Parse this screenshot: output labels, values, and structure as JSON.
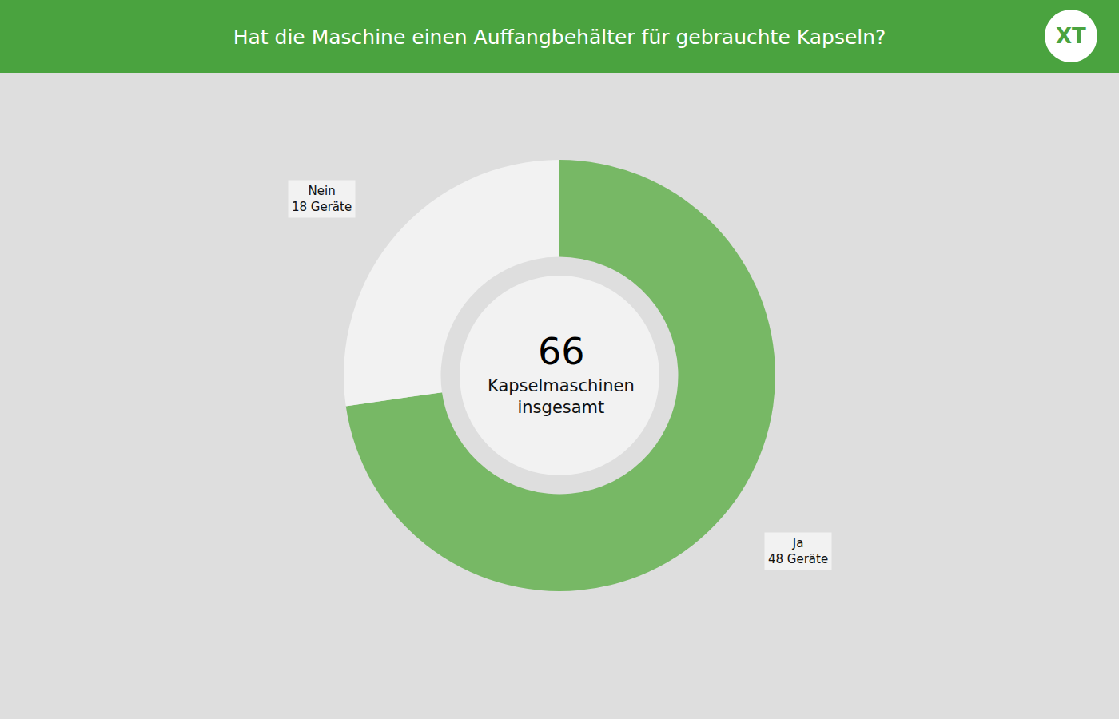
{
  "chart_data": {
    "type": "pie",
    "title": "Hat die Maschine einen Auffangbehälter für gebrauchte Kapseln?",
    "categories": [
      "Ja",
      "Nein"
    ],
    "values": [
      48,
      18
    ],
    "value_labels": [
      "48 Geräte",
      "18 Geräte"
    ],
    "colors": [
      "#77b865",
      "#f2f2f2"
    ],
    "data_labels": true,
    "total": 66,
    "total_label": "Kapselmaschinen insgesamt",
    "logo_text": "XT"
  }
}
